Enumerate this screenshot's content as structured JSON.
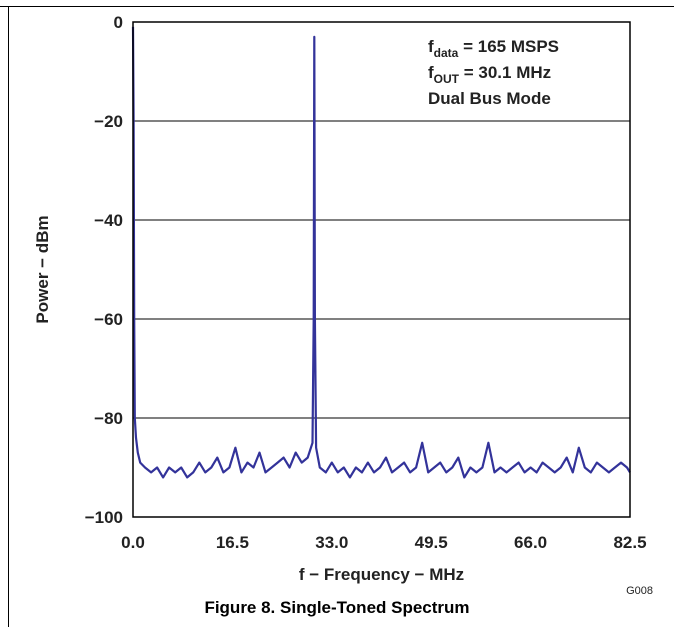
{
  "chart_data": {
    "type": "line",
    "xlabel": "f − Frequency − MHz",
    "ylabel": "Power − dBm",
    "xlim": [
      0,
      82.5
    ],
    "ylim": [
      -100,
      0
    ],
    "x_ticks": [
      "0.0",
      "16.5",
      "33.0",
      "49.5",
      "66.0",
      "82.5"
    ],
    "y_ticks": [
      "0",
      "−20",
      "−40",
      "−60",
      "−80",
      "−100"
    ],
    "grid": "horizontal",
    "line_color": "#33339a",
    "annotations": [
      {
        "main": "f",
        "sub": "data",
        "rest": " = 165 MSPS"
      },
      {
        "main": "f",
        "sub": "OUT",
        "rest": " = 30.1 MHz"
      },
      {
        "main": "Dual Bus Mode",
        "sub": "",
        "rest": ""
      }
    ],
    "series": [
      {
        "x": [
          0.0,
          0.1,
          0.2,
          0.3,
          0.5,
          0.8,
          1.2,
          2.0,
          3.0,
          4.0,
          5.0,
          6.0,
          7.0,
          8.0,
          9.0,
          10.0,
          11.0,
          12.0,
          13.0,
          14.0,
          15.0,
          16.0,
          17.0,
          18.0,
          19.0,
          20.0,
          21.0,
          22.0,
          23.0,
          24.0,
          25.0,
          26.0,
          27.0,
          28.0,
          29.0,
          29.8,
          30.0,
          30.1,
          30.2,
          30.4,
          31.0,
          32.0,
          33.0,
          34.0,
          35.0,
          36.0,
          37.0,
          38.0,
          39.0,
          40.0,
          41.0,
          42.0,
          43.0,
          44.0,
          45.0,
          46.0,
          47.0,
          48.0,
          49.0,
          50.0,
          51.0,
          52.0,
          53.0,
          54.0,
          55.0,
          56.0,
          57.0,
          58.0,
          59.0,
          60.0,
          61.0,
          62.0,
          63.0,
          64.0,
          65.0,
          66.0,
          67.0,
          68.0,
          69.0,
          70.0,
          71.0,
          72.0,
          73.0,
          74.0,
          75.0,
          76.0,
          77.0,
          78.0,
          79.0,
          80.0,
          81.0,
          82.0,
          82.5
        ],
        "y": [
          -1,
          -20,
          -60,
          -80,
          -84,
          -87,
          -89,
          -90,
          -91,
          -90,
          -92,
          -90,
          -91,
          -90,
          -92,
          -91,
          -89,
          -91,
          -90,
          -88,
          -91,
          -90,
          -86,
          -91,
          -89,
          -90,
          -87,
          -91,
          -90,
          -89,
          -88,
          -90,
          -87,
          -89,
          -88,
          -85,
          -60,
          -3,
          -60,
          -86,
          -90,
          -91,
          -89,
          -91,
          -90,
          -92,
          -90,
          -91,
          -89,
          -91,
          -90,
          -88,
          -91,
          -90,
          -89,
          -91,
          -90,
          -85,
          -91,
          -90,
          -89,
          -91,
          -90,
          -88,
          -92,
          -90,
          -91,
          -90,
          -85,
          -91,
          -90,
          -91,
          -90,
          -89,
          -91,
          -90,
          -91,
          -89,
          -90,
          -91,
          -90,
          -88,
          -91,
          -86,
          -90,
          -91,
          -89,
          -90,
          -91,
          -90,
          -89,
          -90,
          -91
        ]
      }
    ]
  },
  "figure": {
    "id": "G008",
    "caption": "Figure 8. Single-Toned Spectrum"
  }
}
